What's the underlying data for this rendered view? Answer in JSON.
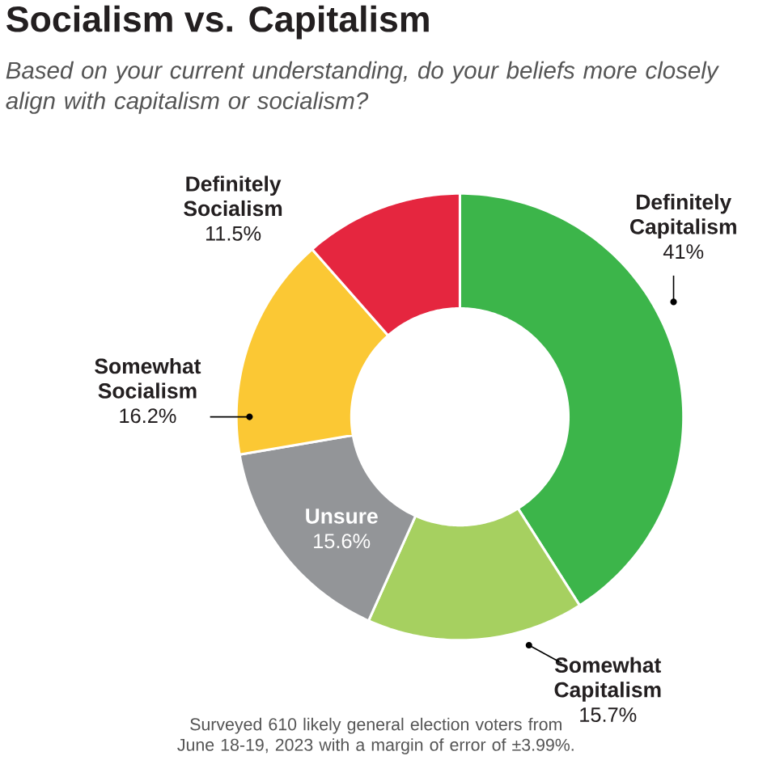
{
  "chart_data": {
    "type": "donut",
    "title": "Socialism vs. Capitalism",
    "subtitle": "Based on your current understanding, do your beliefs more closely align with capitalism or socialism?",
    "categories": [
      "Definitely Capitalism",
      "Somewhat Capitalism",
      "Unsure",
      "Somewhat Socialism",
      "Definitely Socialism"
    ],
    "values": [
      41,
      15.7,
      15.6,
      16.2,
      11.5
    ],
    "colors": [
      "#3cb54a",
      "#a6d060",
      "#939598",
      "#fbc834",
      "#e5263f"
    ],
    "value_labels": [
      "41%",
      "15.7%",
      "15.6%",
      "16.2%",
      "11.5%"
    ],
    "annotations": [
      "Surveyed 610 likely general election voters from June 18-19, 2023 with a margin of error of ±3.99%."
    ]
  }
}
